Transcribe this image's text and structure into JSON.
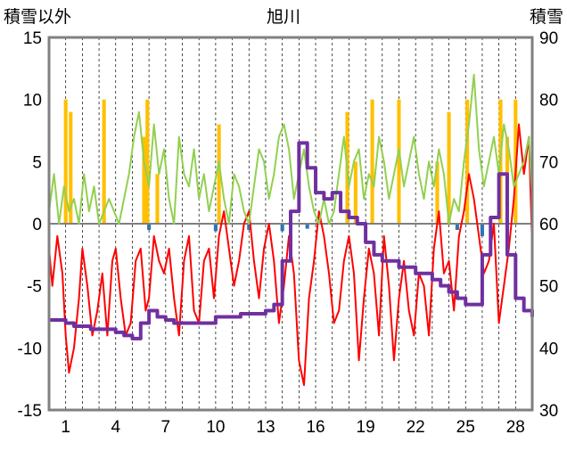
{
  "chart_data": {
    "type": "line",
    "title": "旭川",
    "y_left_label": "積雪以外",
    "y_right_label": "積雪",
    "ylim_left": [
      -15,
      15
    ],
    "ylim_right": [
      30,
      90
    ],
    "xlim": [
      0,
      29
    ],
    "yticks_left": [
      "15",
      "10",
      "5",
      "0",
      "-5",
      "-10",
      "-15"
    ],
    "yticks_right": [
      "90",
      "80",
      "70",
      "60",
      "50",
      "40",
      "30"
    ],
    "x_tick_labels": [
      "1",
      "4",
      "7",
      "10",
      "13",
      "16",
      "19",
      "22",
      "25",
      "28"
    ],
    "x_tick_positions": [
      1,
      4,
      7,
      10,
      13,
      16,
      19,
      22,
      25,
      28
    ],
    "grid": "vertical dashed lines each day",
    "colors": {
      "temperature": "#ff0000",
      "wind": "#92d050",
      "snow_depth": "#7030a0",
      "precip_bar": "#ffc000",
      "neg_bar": "#2e75b6",
      "frame": "#808080",
      "zero_line": "#7f7f7f"
    },
    "series": [
      {
        "axis": "left",
        "color": "#ff0000",
        "x": [
          0,
          0.2,
          0.5,
          0.8,
          1.0,
          1.2,
          1.5,
          1.8,
          2.0,
          2.3,
          2.6,
          2.9,
          3.2,
          3.5,
          3.8,
          4.0,
          4.3,
          4.6,
          4.9,
          5.2,
          5.5,
          5.8,
          6.0,
          6.3,
          6.6,
          6.9,
          7.2,
          7.5,
          7.8,
          8.1,
          8.4,
          8.7,
          9.0,
          9.3,
          9.6,
          9.9,
          10.2,
          10.5,
          10.8,
          11.1,
          11.4,
          11.7,
          12.0,
          12.3,
          12.6,
          12.9,
          13.2,
          13.5,
          13.8,
          14.1,
          14.4,
          14.7,
          15.0,
          15.3,
          15.6,
          15.9,
          16.2,
          16.5,
          16.8,
          17.1,
          17.4,
          17.7,
          18.0,
          18.3,
          18.6,
          18.9,
          19.2,
          19.5,
          19.8,
          20.1,
          20.4,
          20.7,
          21.0,
          21.3,
          21.6,
          21.9,
          22.2,
          22.5,
          22.8,
          23.1,
          23.4,
          23.7,
          24.0,
          24.3,
          24.6,
          24.9,
          25.2,
          25.5,
          25.8,
          26.1,
          26.4,
          26.7,
          27.0,
          27.3,
          27.6,
          27.9,
          28.2,
          28.5,
          28.8,
          29.0
        ],
        "values": [
          -2,
          -5,
          -1,
          -4,
          -9,
          -12,
          -10,
          -6,
          -2,
          -5,
          -9,
          -7,
          -4,
          -9,
          -3,
          -2,
          -6,
          -9,
          -8,
          -3,
          -2,
          -7,
          -6,
          -1,
          -3,
          -4,
          -2,
          -6,
          -9,
          -3,
          -1,
          -7,
          -8,
          -3,
          -2,
          -6,
          -1,
          1,
          -2,
          -5,
          -3,
          0,
          1,
          -3,
          -6,
          -2,
          0,
          -3,
          -8,
          -5,
          -1,
          -4,
          -11,
          -13,
          -6,
          -3,
          1,
          -1,
          -4,
          -8,
          -7,
          -3,
          -1,
          -4,
          -11,
          -6,
          -2,
          -4,
          -9,
          -1,
          -5,
          -11,
          -6,
          -3,
          -7,
          -9,
          -4,
          -5,
          -9,
          -2,
          1,
          -4,
          -3,
          -7,
          -1,
          1,
          4,
          2,
          -1,
          -4,
          -3,
          0,
          -8,
          -5,
          -2,
          2,
          8,
          4,
          7,
          -2
        ]
      },
      {
        "axis": "left",
        "color": "#92d050",
        "x": [
          0,
          0.3,
          0.6,
          0.9,
          1.2,
          1.5,
          1.8,
          2.1,
          2.4,
          2.7,
          3.0,
          3.3,
          3.6,
          3.9,
          4.2,
          4.5,
          4.8,
          5.1,
          5.4,
          5.7,
          6.0,
          6.3,
          6.6,
          6.9,
          7.2,
          7.5,
          7.8,
          8.1,
          8.4,
          8.7,
          9.0,
          9.3,
          9.6,
          9.9,
          10.2,
          10.5,
          10.8,
          11.1,
          11.4,
          11.7,
          12.0,
          12.3,
          12.6,
          12.9,
          13.2,
          13.5,
          13.8,
          14.1,
          14.4,
          14.7,
          15.0,
          15.3,
          15.6,
          15.9,
          16.2,
          16.5,
          16.8,
          17.1,
          17.4,
          17.7,
          18.0,
          18.3,
          18.6,
          18.9,
          19.2,
          19.5,
          19.8,
          20.1,
          20.4,
          20.7,
          21.0,
          21.3,
          21.6,
          21.9,
          22.2,
          22.5,
          22.8,
          23.1,
          23.4,
          23.7,
          24.0,
          24.3,
          24.6,
          24.9,
          25.2,
          25.5,
          25.8,
          26.1,
          26.4,
          26.7,
          27.0,
          27.3,
          27.6,
          27.9,
          28.2,
          28.5,
          28.8,
          29.0
        ],
        "values": [
          1,
          4,
          0,
          3,
          1,
          2,
          0,
          4,
          1,
          3,
          0,
          1,
          2,
          1,
          0,
          2,
          4,
          7,
          9,
          5,
          3,
          8,
          4,
          6,
          2,
          0,
          7,
          4,
          3,
          6,
          2,
          4,
          1,
          3,
          5,
          2,
          0,
          4,
          3,
          1,
          0,
          3,
          6,
          5,
          2,
          4,
          7,
          8,
          6,
          2,
          4,
          6,
          3,
          1,
          0,
          2,
          0,
          1,
          4,
          7,
          3,
          5,
          6,
          2,
          4,
          3,
          7,
          5,
          2,
          4,
          6,
          3,
          5,
          7,
          4,
          2,
          5,
          3,
          6,
          4,
          0,
          2,
          1,
          5,
          8,
          12,
          6,
          3,
          5,
          7,
          4,
          8,
          6,
          3,
          4,
          5,
          7,
          2
        ]
      },
      {
        "axis": "right",
        "color": "#7030a0",
        "x": [
          0,
          0.5,
          1.0,
          1.5,
          2.0,
          2.5,
          3.0,
          3.5,
          4.0,
          4.5,
          5.0,
          5.5,
          6.0,
          6.5,
          7.0,
          7.5,
          8.0,
          8.5,
          9.0,
          9.5,
          10.0,
          10.5,
          11.0,
          11.5,
          12.0,
          12.5,
          13.0,
          13.5,
          14.0,
          14.5,
          15.0,
          15.5,
          16.0,
          16.5,
          17.0,
          17.5,
          18.0,
          18.5,
          19.0,
          19.5,
          20.0,
          20.5,
          21.0,
          21.5,
          22.0,
          22.5,
          23.0,
          23.5,
          24.0,
          24.5,
          25.0,
          25.5,
          26.0,
          26.5,
          27.0,
          27.5,
          28.0,
          28.5,
          29.0
        ],
        "values": [
          44.5,
          44.5,
          44.0,
          43.5,
          43.5,
          43.0,
          43.0,
          43.0,
          42.5,
          42.0,
          41.5,
          44.0,
          46.0,
          45.0,
          44.5,
          44.0,
          44.0,
          44.0,
          44.0,
          44.0,
          45.0,
          45.0,
          45.0,
          45.5,
          45.5,
          45.5,
          46.0,
          47.0,
          54.0,
          62.0,
          73.0,
          69.0,
          65.0,
          64.0,
          65.0,
          62.0,
          61.0,
          60.0,
          57.0,
          55.0,
          54.0,
          54.0,
          53.0,
          53.0,
          52.0,
          52.0,
          51.0,
          50.0,
          49.0,
          48.0,
          47.0,
          47.0,
          55.0,
          61.0,
          68.0,
          55.0,
          48.0,
          46.0,
          45.0
        ]
      }
    ],
    "bars": [
      {
        "x": 1.0,
        "value": 10,
        "color": "#ffc000"
      },
      {
        "x": 1.3,
        "value": 9,
        "color": "#ffc000"
      },
      {
        "x": 3.3,
        "value": 10,
        "color": "#ffc000"
      },
      {
        "x": 5.7,
        "value": 7,
        "color": "#ffc000"
      },
      {
        "x": 5.9,
        "value": 10,
        "color": "#ffc000"
      },
      {
        "x": 6.5,
        "value": 4,
        "color": "#ffc000"
      },
      {
        "x": 10.2,
        "value": 8,
        "color": "#ffc000"
      },
      {
        "x": 17.9,
        "value": 9,
        "color": "#ffc000"
      },
      {
        "x": 18.4,
        "value": 5,
        "color": "#ffc000"
      },
      {
        "x": 19.4,
        "value": 10,
        "color": "#ffc000"
      },
      {
        "x": 21.0,
        "value": 10,
        "color": "#ffc000"
      },
      {
        "x": 23.3,
        "value": 5,
        "color": "#ffc000"
      },
      {
        "x": 24.0,
        "value": 9,
        "color": "#ffc000"
      },
      {
        "x": 25.1,
        "value": 10,
        "color": "#ffc000"
      },
      {
        "x": 27.1,
        "value": 10,
        "color": "#ffc000"
      },
      {
        "x": 27.5,
        "value": 7,
        "color": "#ffc000"
      },
      {
        "x": 28.0,
        "value": 10,
        "color": "#ffc000"
      },
      {
        "x": 6.0,
        "value": -0.5,
        "color": "#2e75b6"
      },
      {
        "x": 10.0,
        "value": -0.6,
        "color": "#2e75b6"
      },
      {
        "x": 12.0,
        "value": -0.5,
        "color": "#2e75b6"
      },
      {
        "x": 14.0,
        "value": -0.6,
        "color": "#2e75b6"
      },
      {
        "x": 15.5,
        "value": -0.4,
        "color": "#2e75b6"
      },
      {
        "x": 24.5,
        "value": -0.5,
        "color": "#2e75b6"
      },
      {
        "x": 26.0,
        "value": -1.0,
        "color": "#2e75b6"
      }
    ]
  }
}
